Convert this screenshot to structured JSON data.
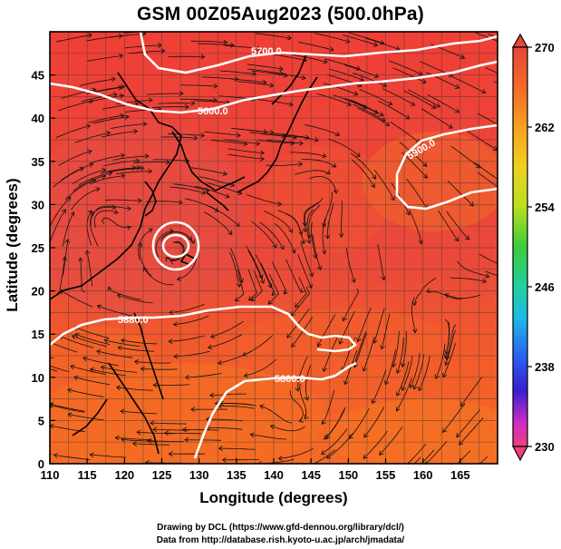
{
  "title": "GSM 00Z05Aug2023 (500.0hPa)",
  "xlabel": "Longitude (degrees)",
  "ylabel": "Latitude  (degrees)",
  "credits": {
    "line1": "Drawing by DCL (https://www.gfd-dennou.org/library/dcl/)",
    "line2": "Data from http://database.rish.kyoto-u.ac.jp/arch/jmadata/"
  },
  "map": {
    "lon_range": [
      110,
      170
    ],
    "lat_range": [
      0,
      50
    ],
    "lon_ticks": [
      "110",
      "115",
      "120",
      "125",
      "130",
      "135",
      "140",
      "145",
      "150",
      "155",
      "160",
      "165"
    ],
    "lat_ticks": [
      "0",
      "5",
      "10",
      "15",
      "20",
      "25",
      "30",
      "35",
      "40",
      "45"
    ],
    "field_colors": {
      "warm": "#e8493a",
      "hot": "#f0413a",
      "orange": "#f26a2a"
    }
  },
  "contours": [
    {
      "label": "5700.0"
    },
    {
      "label": "5600.0"
    },
    {
      "label": "5900.0"
    },
    {
      "label": "5880.0"
    },
    {
      "label": "5800.0"
    }
  ],
  "colorbar": {
    "min": 230,
    "max": 270,
    "ticks": [
      "270",
      "262",
      "254",
      "246",
      "238",
      "230"
    ],
    "colors": [
      "#f0407a",
      "#cc2cc4",
      "#3a1ecf",
      "#2a5cf0",
      "#1fb8e6",
      "#20d0a0",
      "#3ccc3a",
      "#b8e020",
      "#f0d020",
      "#f6a020",
      "#f26a2a",
      "#e94636"
    ]
  }
}
